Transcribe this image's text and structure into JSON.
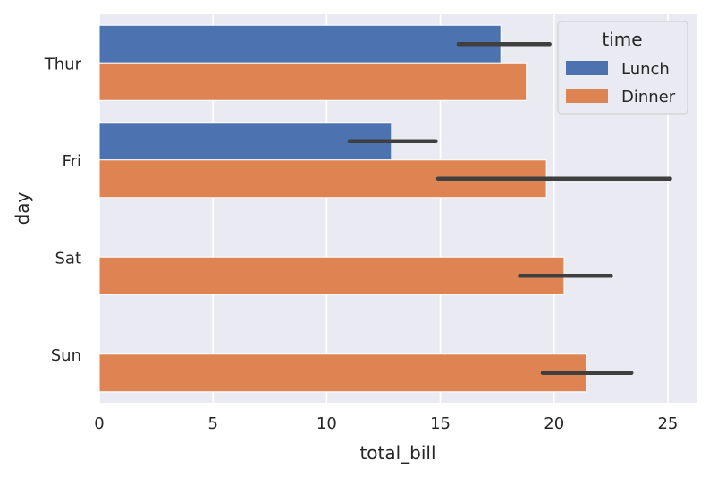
{
  "chart_data": {
    "type": "bar",
    "orientation": "horizontal",
    "categories": [
      "Thur",
      "Fri",
      "Sat",
      "Sun"
    ],
    "series": [
      {
        "name": "Lunch",
        "color": "#4c72b0",
        "values": [
          17.66,
          12.85,
          null,
          null
        ],
        "ci": [
          [
            15.8,
            19.8
          ],
          [
            11.0,
            14.8
          ],
          null,
          null
        ]
      },
      {
        "name": "Dinner",
        "color": "#dd8452",
        "values": [
          18.78,
          19.66,
          20.44,
          21.41
        ],
        "ci": [
          null,
          [
            14.9,
            25.1
          ],
          [
            18.5,
            22.5
          ],
          [
            19.5,
            23.4
          ]
        ]
      }
    ],
    "xlabel": "total_bill",
    "ylabel": "day",
    "xlim": [
      0,
      26.3
    ],
    "xticks": [
      "0",
      "5",
      "10",
      "15",
      "20",
      "25"
    ],
    "xtick_values": [
      0,
      5,
      10,
      15,
      20,
      25
    ],
    "grid": true,
    "legend": {
      "title": "time",
      "position": "upper right",
      "labels": [
        "Lunch",
        "Dinner"
      ]
    },
    "colors": {
      "background": "#eaeaf2",
      "grid": "#ffffff",
      "errorbar": "#3f3f3f"
    }
  }
}
